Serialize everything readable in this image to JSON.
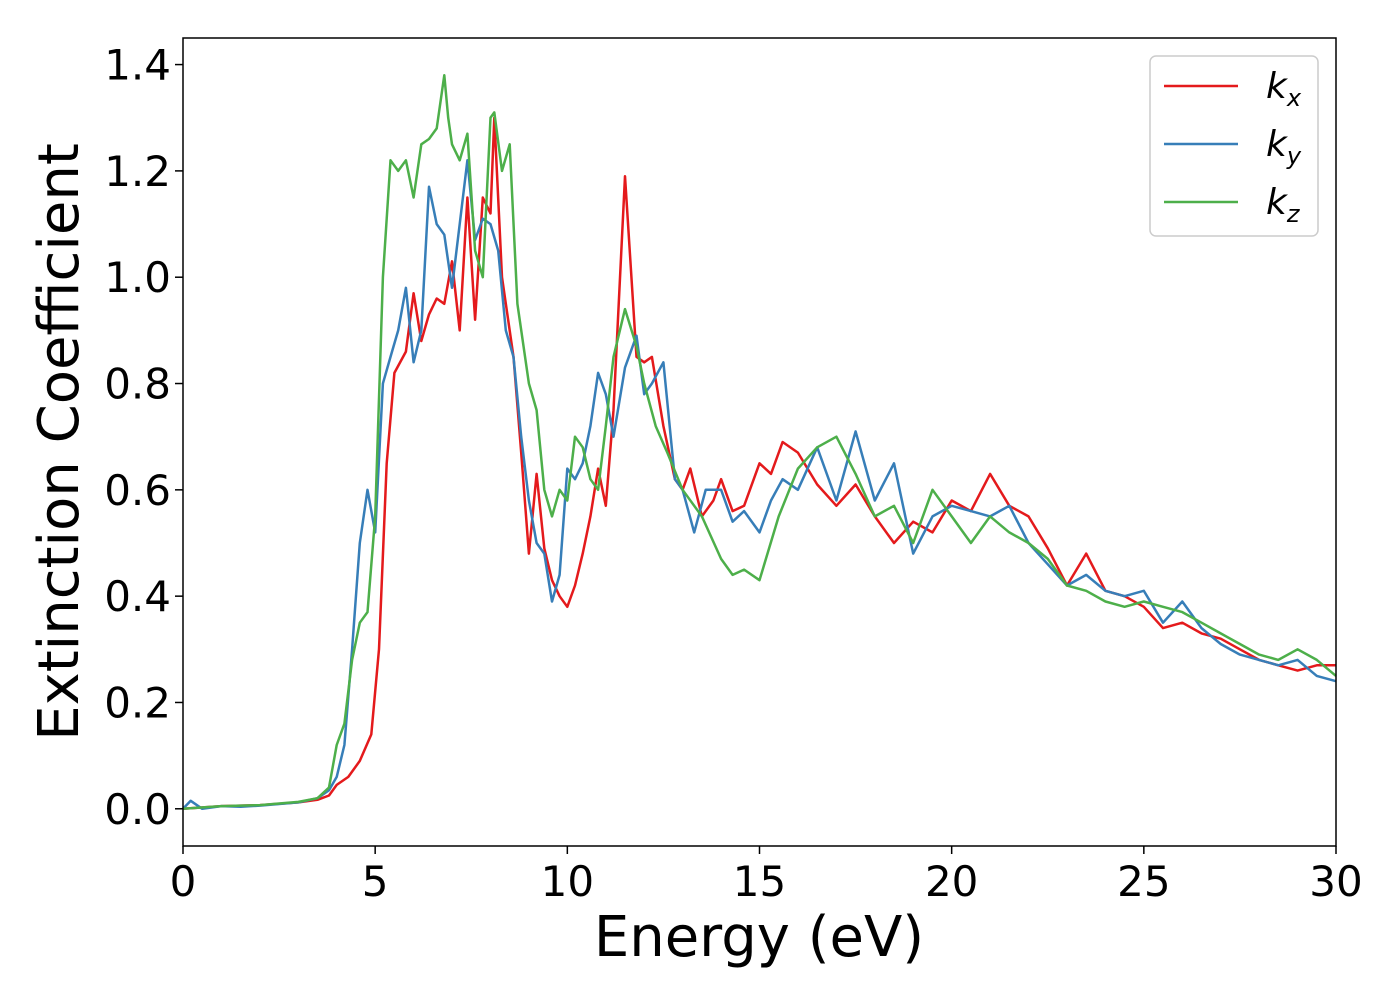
{
  "chart_data": {
    "type": "line",
    "xlabel": "Energy (eV)",
    "ylabel": "Extinction Coefficient",
    "xlim": [
      0,
      30
    ],
    "ylim": [
      -0.07,
      1.45
    ],
    "x_ticks": [
      0,
      5,
      10,
      15,
      20,
      25,
      30
    ],
    "y_ticks": [
      0.0,
      0.2,
      0.4,
      0.6,
      0.8,
      1.0,
      1.2,
      1.4
    ],
    "x_tick_labels": [
      "0",
      "5",
      "10",
      "15",
      "20",
      "25",
      "30"
    ],
    "y_tick_labels": [
      "0.0",
      "0.2",
      "0.4",
      "0.6",
      "0.8",
      "1.0",
      "1.2",
      "1.4"
    ],
    "grid": false,
    "legend_position": "top-right",
    "series": [
      {
        "name": "k",
        "subscript": "x",
        "color": "#e41a1c",
        "x": [
          0,
          1,
          2,
          3,
          3.5,
          3.8,
          4.0,
          4.3,
          4.6,
          4.9,
          5.1,
          5.3,
          5.5,
          5.8,
          6.0,
          6.2,
          6.4,
          6.6,
          6.8,
          7.0,
          7.2,
          7.4,
          7.6,
          7.8,
          8.0,
          8.1,
          8.3,
          8.6,
          8.8,
          9.0,
          9.2,
          9.4,
          9.6,
          9.8,
          10.0,
          10.2,
          10.4,
          10.6,
          10.8,
          11.0,
          11.2,
          11.5,
          11.8,
          12.0,
          12.2,
          12.5,
          12.8,
          13.0,
          13.2,
          13.5,
          13.8,
          14.0,
          14.3,
          14.6,
          15.0,
          15.3,
          15.6,
          16.0,
          16.5,
          17.0,
          17.5,
          18.0,
          18.5,
          19.0,
          19.5,
          20.0,
          20.5,
          21.0,
          21.5,
          22.0,
          22.5,
          23.0,
          23.5,
          24.0,
          24.5,
          25.0,
          25.5,
          26.0,
          26.5,
          27.0,
          27.5,
          28.0,
          28.5,
          29.0,
          29.5,
          30.0
        ],
        "values": [
          0.0,
          0.005,
          0.007,
          0.012,
          0.017,
          0.025,
          0.045,
          0.06,
          0.09,
          0.14,
          0.3,
          0.65,
          0.82,
          0.86,
          0.97,
          0.88,
          0.93,
          0.96,
          0.95,
          1.03,
          0.9,
          1.15,
          0.92,
          1.15,
          1.12,
          1.3,
          1.0,
          0.85,
          0.67,
          0.48,
          0.63,
          0.49,
          0.43,
          0.4,
          0.38,
          0.42,
          0.48,
          0.55,
          0.64,
          0.57,
          0.75,
          1.19,
          0.85,
          0.84,
          0.85,
          0.72,
          0.62,
          0.6,
          0.64,
          0.55,
          0.58,
          0.62,
          0.56,
          0.57,
          0.65,
          0.63,
          0.69,
          0.67,
          0.61,
          0.57,
          0.61,
          0.55,
          0.5,
          0.54,
          0.52,
          0.58,
          0.56,
          0.63,
          0.57,
          0.55,
          0.49,
          0.42,
          0.48,
          0.41,
          0.4,
          0.38,
          0.34,
          0.35,
          0.33,
          0.32,
          0.3,
          0.28,
          0.27,
          0.26,
          0.27,
          0.27
        ]
      },
      {
        "name": "k",
        "subscript": "y",
        "color": "#377eb8",
        "x": [
          0,
          0.2,
          0.5,
          1,
          1.5,
          2,
          3,
          3.5,
          3.8,
          4.0,
          4.2,
          4.4,
          4.6,
          4.8,
          5.0,
          5.2,
          5.4,
          5.6,
          5.8,
          6.0,
          6.2,
          6.4,
          6.6,
          6.8,
          7.0,
          7.2,
          7.4,
          7.6,
          7.8,
          8.0,
          8.2,
          8.4,
          8.6,
          8.8,
          9.0,
          9.2,
          9.4,
          9.6,
          9.8,
          10.0,
          10.2,
          10.4,
          10.6,
          10.8,
          11.0,
          11.2,
          11.5,
          11.8,
          12.0,
          12.2,
          12.5,
          12.8,
          13.0,
          13.3,
          13.6,
          14.0,
          14.3,
          14.6,
          15.0,
          15.3,
          15.6,
          16.0,
          16.5,
          17.0,
          17.5,
          18.0,
          18.5,
          19.0,
          19.5,
          20.0,
          20.5,
          21.0,
          21.5,
          22.0,
          22.5,
          23.0,
          23.5,
          24.0,
          24.5,
          25.0,
          25.5,
          26.0,
          26.5,
          27.0,
          27.5,
          28.0,
          28.5,
          29.0,
          29.5,
          30.0
        ],
        "values": [
          0.0,
          0.015,
          0.0,
          0.005,
          0.004,
          0.006,
          0.012,
          0.02,
          0.035,
          0.06,
          0.12,
          0.3,
          0.5,
          0.6,
          0.52,
          0.8,
          0.85,
          0.9,
          0.98,
          0.84,
          0.9,
          1.17,
          1.1,
          1.08,
          0.98,
          1.1,
          1.22,
          1.07,
          1.11,
          1.1,
          1.05,
          0.9,
          0.85,
          0.7,
          0.58,
          0.5,
          0.48,
          0.39,
          0.44,
          0.64,
          0.62,
          0.65,
          0.72,
          0.82,
          0.78,
          0.7,
          0.83,
          0.89,
          0.78,
          0.8,
          0.84,
          0.62,
          0.6,
          0.52,
          0.6,
          0.6,
          0.54,
          0.56,
          0.52,
          0.58,
          0.62,
          0.6,
          0.68,
          0.58,
          0.71,
          0.58,
          0.65,
          0.48,
          0.55,
          0.57,
          0.56,
          0.55,
          0.57,
          0.5,
          0.46,
          0.42,
          0.44,
          0.41,
          0.4,
          0.41,
          0.35,
          0.39,
          0.34,
          0.31,
          0.29,
          0.28,
          0.27,
          0.28,
          0.25,
          0.24
        ]
      },
      {
        "name": "k",
        "subscript": "z",
        "color": "#4daf4a",
        "x": [
          0,
          1,
          2,
          3,
          3.5,
          3.8,
          4.0,
          4.2,
          4.4,
          4.6,
          4.8,
          5.0,
          5.2,
          5.4,
          5.6,
          5.8,
          6.0,
          6.2,
          6.4,
          6.6,
          6.8,
          6.9,
          7.0,
          7.2,
          7.4,
          7.6,
          7.8,
          8.0,
          8.1,
          8.3,
          8.5,
          8.7,
          9.0,
          9.2,
          9.4,
          9.6,
          9.8,
          10.0,
          10.2,
          10.4,
          10.6,
          10.8,
          11.0,
          11.2,
          11.5,
          11.8,
          12.0,
          12.3,
          12.6,
          13.0,
          13.5,
          14.0,
          14.3,
          14.6,
          15.0,
          15.5,
          16.0,
          16.5,
          17.0,
          17.5,
          18.0,
          18.5,
          19.0,
          19.5,
          20.0,
          20.5,
          21.0,
          21.5,
          22.0,
          22.5,
          23.0,
          23.5,
          24.0,
          24.5,
          25.0,
          25.5,
          26.0,
          26.5,
          27.0,
          27.5,
          28.0,
          28.5,
          29.0,
          29.5,
          30.0
        ],
        "values": [
          0.0,
          0.005,
          0.007,
          0.013,
          0.02,
          0.04,
          0.12,
          0.16,
          0.28,
          0.35,
          0.37,
          0.55,
          1.0,
          1.22,
          1.2,
          1.22,
          1.15,
          1.25,
          1.26,
          1.28,
          1.38,
          1.3,
          1.25,
          1.22,
          1.27,
          1.05,
          1.0,
          1.3,
          1.31,
          1.2,
          1.25,
          0.95,
          0.8,
          0.75,
          0.6,
          0.55,
          0.6,
          0.58,
          0.7,
          0.68,
          0.62,
          0.6,
          0.72,
          0.85,
          0.94,
          0.87,
          0.8,
          0.72,
          0.67,
          0.6,
          0.55,
          0.47,
          0.44,
          0.45,
          0.43,
          0.55,
          0.64,
          0.68,
          0.7,
          0.63,
          0.55,
          0.57,
          0.5,
          0.6,
          0.55,
          0.5,
          0.55,
          0.52,
          0.5,
          0.47,
          0.42,
          0.41,
          0.39,
          0.38,
          0.39,
          0.38,
          0.37,
          0.35,
          0.33,
          0.31,
          0.29,
          0.28,
          0.3,
          0.28,
          0.25
        ]
      }
    ]
  }
}
